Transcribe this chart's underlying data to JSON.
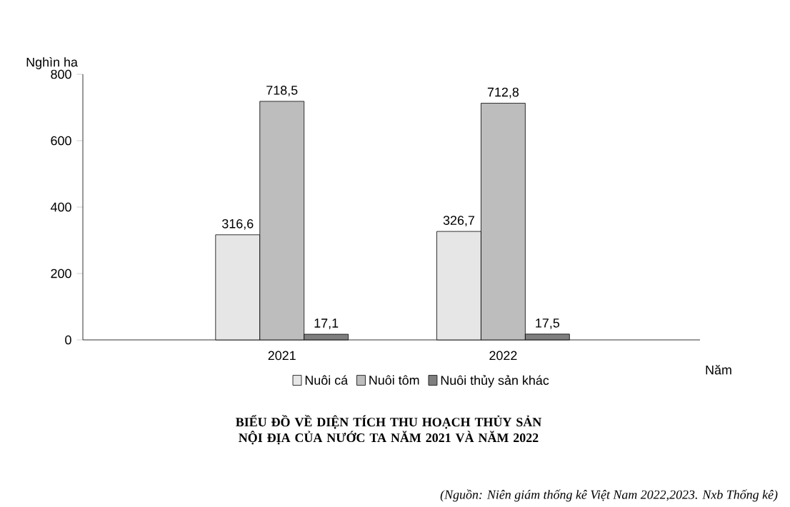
{
  "chart_data": {
    "type": "bar",
    "title": "BIỂU ĐỒ VỀ DIỆN TÍCH THU HOẠCH THỦY SẢN NỘI ĐỊA CỦA NƯỚC TA NĂM 2021 VÀ NĂM 2022",
    "xlabel": "Năm",
    "ylabel": "Nghìn ha",
    "categories": [
      "2021",
      "2022"
    ],
    "series": [
      {
        "name": "Nuôi cá",
        "color": "#e6e6e6",
        "values": [
          316.6,
          326.7
        ],
        "value_labels": [
          "316,6",
          "326,7"
        ]
      },
      {
        "name": "Nuôi tôm",
        "color": "#bdbdbd",
        "values": [
          718.5,
          712.8
        ],
        "value_labels": [
          "718,5",
          "712,8"
        ]
      },
      {
        "name": "Nuôi thủy sản khác",
        "color": "#7f7f7f",
        "values": [
          17.1,
          17.5
        ],
        "value_labels": [
          "17,1",
          "17,5"
        ]
      }
    ],
    "ylim": [
      0,
      800
    ],
    "yticks": [
      0,
      200,
      400,
      600,
      800
    ],
    "grid": false,
    "legend": "bottom",
    "annotations": [
      "(Nguồn: Niên giám thống kê Việt Nam 2022,2023. Nxb Thống kê)"
    ]
  }
}
